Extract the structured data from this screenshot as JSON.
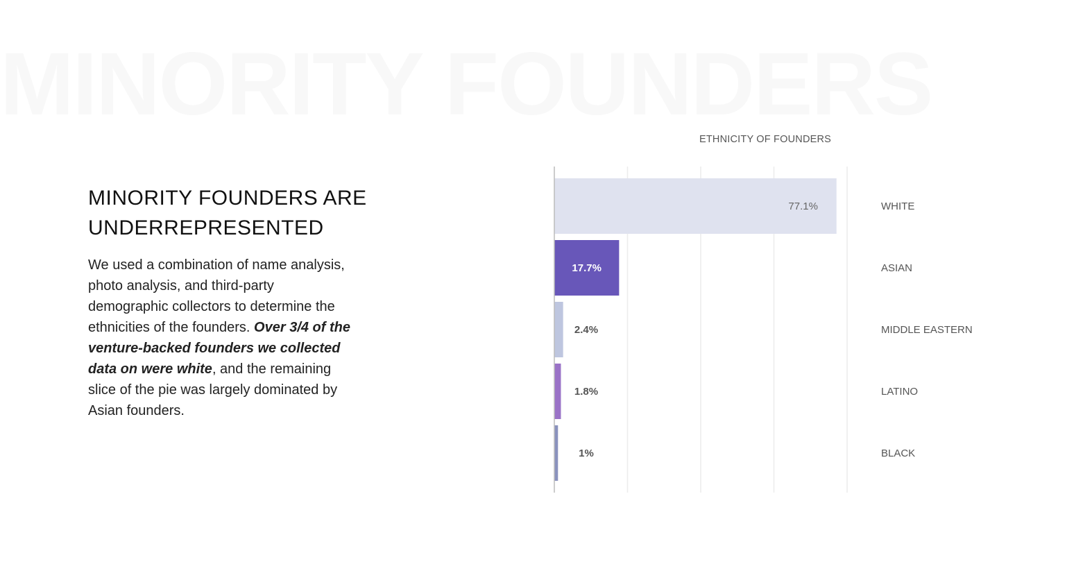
{
  "watermark": "MINORITY FOUNDERS",
  "heading": "MINORITY FOUNDERS ARE UNDERREPRESENTED",
  "body": {
    "part1": "We used a combination of name analysis, photo analysis, and third-party demographic collectors to determine the ethnicities of the founders. ",
    "emphasis": "Over 3/4 of the venture-backed founders we collected data on were white",
    "part2": ", and the remaining slice of the pie was largely dominated by Asian founders."
  },
  "chart_data": {
    "type": "bar",
    "orientation": "horizontal",
    "title": "ETHNICITY OF FOUNDERS",
    "categories": [
      "WHITE",
      "ASIAN",
      "MIDDLE EASTERN",
      "LATINO",
      "BLACK"
    ],
    "values": [
      77.1,
      17.7,
      2.4,
      1.8,
      1
    ],
    "labels": [
      "77.1%",
      "17.7%",
      "2.4%",
      "1.8%",
      "1%"
    ],
    "colors": [
      "#dfe2ef",
      "#6857b9",
      "#bec6df",
      "#9a72c7",
      "#8a92bd"
    ],
    "label_colors": [
      "#666666",
      "#ffffff",
      "#555555",
      "#555555",
      "#555555"
    ],
    "xlim": [
      0,
      80
    ],
    "grid_step": 20,
    "grid": true,
    "xlabel": "",
    "ylabel": ""
  }
}
